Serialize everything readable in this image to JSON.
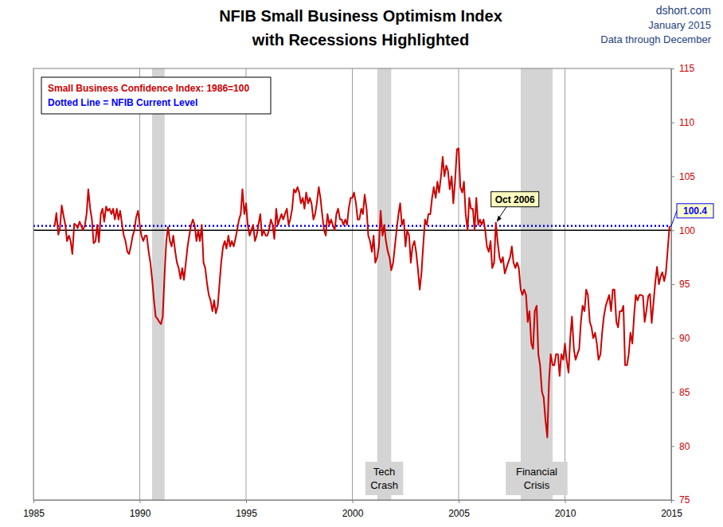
{
  "chart_data": {
    "type": "line",
    "title": "NFIB Small Business Optimism Index",
    "subtitle": "with Recessions Highlighted",
    "source": [
      "dshort.com",
      "January 2015",
      "Data through December"
    ],
    "xlim": [
      1985,
      2015
    ],
    "xticks": [
      1985,
      1990,
      1995,
      2000,
      2005,
      2010,
      2015
    ],
    "ylim": [
      75,
      115
    ],
    "yticks": [
      75,
      80,
      85,
      90,
      95,
      100,
      105,
      110,
      115
    ],
    "grid": true,
    "baseline": 100,
    "series": [
      {
        "name": "Small Business Confidence Index: 1986=100",
        "color": "#cc0000",
        "x": [
          1986,
          1986.08,
          1986.17,
          1986.25,
          1986.33,
          1986.42,
          1986.5,
          1986.58,
          1986.67,
          1986.75,
          1986.83,
          1986.92,
          1987,
          1987.08,
          1987.17,
          1987.25,
          1987.33,
          1987.42,
          1987.5,
          1987.58,
          1987.67,
          1987.75,
          1987.83,
          1987.92,
          1988,
          1988.08,
          1988.17,
          1988.25,
          1988.33,
          1988.42,
          1988.5,
          1988.58,
          1988.67,
          1988.75,
          1988.83,
          1988.92,
          1989,
          1989.08,
          1989.17,
          1989.25,
          1989.33,
          1989.42,
          1989.5,
          1989.58,
          1989.67,
          1989.75,
          1989.83,
          1989.92,
          1990,
          1990.08,
          1990.17,
          1990.25,
          1990.33,
          1990.42,
          1990.5,
          1990.58,
          1990.67,
          1990.75,
          1990.83,
          1990.92,
          1991,
          1991.08,
          1991.17,
          1991.25,
          1991.33,
          1991.42,
          1991.5,
          1991.58,
          1991.67,
          1991.75,
          1991.83,
          1991.92,
          1992,
          1992.08,
          1992.17,
          1992.25,
          1992.33,
          1992.42,
          1992.5,
          1992.58,
          1992.67,
          1992.75,
          1992.83,
          1992.92,
          1993,
          1993.08,
          1993.17,
          1993.25,
          1993.33,
          1993.42,
          1993.5,
          1993.58,
          1993.67,
          1993.75,
          1993.83,
          1993.92,
          1994,
          1994.08,
          1994.17,
          1994.25,
          1994.33,
          1994.42,
          1994.5,
          1994.58,
          1994.67,
          1994.75,
          1994.83,
          1994.92,
          1995,
          1995.08,
          1995.17,
          1995.25,
          1995.33,
          1995.42,
          1995.5,
          1995.58,
          1995.67,
          1995.75,
          1995.83,
          1995.92,
          1996,
          1996.08,
          1996.17,
          1996.25,
          1996.33,
          1996.42,
          1996.5,
          1996.58,
          1996.67,
          1996.75,
          1996.83,
          1996.92,
          1997,
          1997.08,
          1997.17,
          1997.25,
          1997.33,
          1997.42,
          1997.5,
          1997.58,
          1997.67,
          1997.75,
          1997.83,
          1997.92,
          1998,
          1998.08,
          1998.17,
          1998.25,
          1998.33,
          1998.42,
          1998.5,
          1998.58,
          1998.67,
          1998.75,
          1998.83,
          1998.92,
          1999,
          1999.08,
          1999.17,
          1999.25,
          1999.33,
          1999.42,
          1999.5,
          1999.58,
          1999.67,
          1999.75,
          1999.83,
          1999.92,
          2000,
          2000.08,
          2000.17,
          2000.25,
          2000.33,
          2000.42,
          2000.5,
          2000.58,
          2000.67,
          2000.75,
          2000.83,
          2000.92,
          2001,
          2001.08,
          2001.17,
          2001.25,
          2001.33,
          2001.42,
          2001.5,
          2001.58,
          2001.67,
          2001.75,
          2001.83,
          2001.92,
          2002,
          2002.08,
          2002.17,
          2002.25,
          2002.33,
          2002.42,
          2002.5,
          2002.58,
          2002.67,
          2002.75,
          2002.83,
          2002.92,
          2003,
          2003.08,
          2003.17,
          2003.25,
          2003.33,
          2003.42,
          2003.5,
          2003.58,
          2003.67,
          2003.75,
          2003.83,
          2003.92,
          2004,
          2004.08,
          2004.17,
          2004.25,
          2004.33,
          2004.42,
          2004.5,
          2004.58,
          2004.67,
          2004.75,
          2004.83,
          2004.92,
          2005,
          2005.08,
          2005.17,
          2005.25,
          2005.33,
          2005.42,
          2005.5,
          2005.58,
          2005.67,
          2005.75,
          2005.83,
          2005.92,
          2006,
          2006.08,
          2006.17,
          2006.25,
          2006.33,
          2006.42,
          2006.5,
          2006.58,
          2006.67,
          2006.75,
          2006.83,
          2006.92,
          2007,
          2007.08,
          2007.17,
          2007.25,
          2007.33,
          2007.42,
          2007.5,
          2007.58,
          2007.67,
          2007.75,
          2007.83,
          2007.92,
          2008,
          2008.08,
          2008.17,
          2008.25,
          2008.33,
          2008.42,
          2008.5,
          2008.58,
          2008.67,
          2008.75,
          2008.83,
          2008.92,
          2009,
          2009.08,
          2009.17,
          2009.25,
          2009.33,
          2009.42,
          2009.5,
          2009.58,
          2009.67,
          2009.75,
          2009.83,
          2009.92,
          2010,
          2010.08,
          2010.17,
          2010.25,
          2010.33,
          2010.42,
          2010.5,
          2010.58,
          2010.67,
          2010.75,
          2010.83,
          2010.92,
          2011,
          2011.08,
          2011.17,
          2011.25,
          2011.33,
          2011.42,
          2011.5,
          2011.58,
          2011.67,
          2011.75,
          2011.83,
          2011.92,
          2012,
          2012.08,
          2012.17,
          2012.25,
          2012.33,
          2012.42,
          2012.5,
          2012.58,
          2012.67,
          2012.75,
          2012.83,
          2012.92,
          2013,
          2013.08,
          2013.17,
          2013.25,
          2013.33,
          2013.42,
          2013.5,
          2013.58,
          2013.67,
          2013.75,
          2013.83,
          2013.92,
          2014,
          2014.08,
          2014.17,
          2014.25,
          2014.33,
          2014.42,
          2014.5,
          2014.58,
          2014.67,
          2014.75,
          2014.83,
          2014.92
        ],
        "values": [
          100.4,
          101.6,
          99.6,
          100.3,
          102.3,
          101.3,
          100.5,
          99.0,
          99.5,
          99.0,
          97.8,
          100.6,
          100.5,
          100.2,
          100.8,
          100.4,
          100.0,
          100.5,
          101.5,
          103.8,
          102.0,
          101.0,
          98.8,
          99.0,
          100.5,
          98.9,
          101.5,
          102.0,
          100.8,
          102.2,
          101.8,
          102.0,
          101.5,
          102.0,
          101.0,
          102.0,
          101.0,
          101.8,
          100.5,
          99.5,
          99.0,
          98.0,
          97.8,
          98.5,
          99.5,
          100.0,
          101.2,
          101.8,
          100.5,
          99.5,
          99.0,
          99.5,
          99.5,
          98.0,
          97.0,
          95.5,
          93.5,
          92.0,
          91.8,
          91.5,
          91.3,
          92.0,
          96.0,
          99.0,
          100.3,
          99.0,
          98.5,
          99.5,
          98.0,
          97.0,
          96.5,
          95.5,
          96.5,
          95.4,
          97.0,
          98.5,
          99.5,
          100.5,
          101.0,
          100.5,
          99.0,
          100.0,
          99.0,
          100.5,
          97.0,
          96.5,
          95.0,
          94.0,
          93.5,
          92.5,
          93.5,
          92.3,
          93.0,
          95.0,
          97.0,
          98.5,
          99.0,
          98.3,
          99.5,
          98.5,
          99.0,
          98.5,
          99.2,
          100.0,
          101.0,
          101.5,
          103.8,
          101.5,
          102.5,
          100.5,
          99.5,
          100.0,
          100.5,
          99.0,
          99.5,
          100.5,
          101.5,
          99.5,
          100.0,
          99.5,
          99.5,
          100.0,
          101.0,
          100.5,
          99.2,
          102.0,
          100.5,
          101.0,
          101.5,
          101.0,
          101.5,
          102.0,
          100.5,
          101.0,
          102.0,
          103.8,
          103.5,
          104.0,
          103.5,
          102.5,
          103.0,
          102.0,
          103.5,
          102.5,
          103.0,
          102.5,
          101.0,
          101.5,
          102.5,
          104.0,
          103.0,
          101.5,
          100.0,
          99.5,
          101.5,
          100.5,
          101.0,
          100.5,
          100.0,
          101.5,
          102.0,
          101.0,
          101.0,
          100.5,
          101.0,
          100.5,
          102.0,
          103.0,
          103.0,
          103.5,
          102.5,
          101.0,
          101.0,
          102.0,
          101.5,
          103.3,
          102.0,
          99.5,
          99.0,
          98.0,
          99.5,
          97.0,
          97.5,
          98.5,
          101.8,
          99.5,
          100.5,
          99.0,
          98.0,
          97.5,
          96.3,
          97.0,
          98.5,
          100.0,
          101.5,
          102.5,
          100.5,
          101.0,
          98.5,
          100.0,
          99.5,
          97.0,
          98.5,
          99.0,
          98.0,
          96.5,
          94.5,
          96.0,
          98.5,
          101.0,
          100.5,
          101.5,
          101.5,
          103.0,
          104.0,
          103.0,
          104.5,
          103.5,
          105.0,
          106.8,
          105.0,
          106.0,
          105.5,
          103.8,
          105.0,
          102.5,
          104.5,
          107.5,
          107.6,
          104.0,
          103.5,
          104.5,
          101.5,
          100.0,
          103.0,
          102.0,
          102.0,
          100.0,
          103.0,
          100.5,
          101.0,
          100.5,
          101.0,
          100.0,
          98.5,
          98.0,
          99.0,
          96.5,
          97.0,
          100.7,
          99.0,
          97.5,
          97.0,
          97.5,
          96.0,
          96.5,
          97.0,
          97.5,
          98.5,
          97.0,
          96.5,
          97.0,
          96.5,
          94.5,
          94.0,
          94.5,
          94.0,
          91.5,
          92.5,
          89.5,
          89.0,
          92.5,
          93.0,
          88.5,
          87.5,
          85.0,
          84.5,
          82.5,
          80.8,
          86.0,
          88.5,
          87.5,
          87.5,
          88.5,
          88.5,
          86.5,
          88.5,
          88.0,
          89.5,
          88.0,
          86.8,
          90.0,
          92.0,
          89.0,
          88.0,
          88.5,
          89.0,
          91.5,
          93.0,
          92.5,
          94.5,
          94.0,
          91.5,
          91.0,
          90.0,
          90.5,
          89.5,
          88.0,
          88.5,
          90.5,
          92.0,
          93.0,
          93.5,
          94.0,
          92.5,
          94.5,
          94.5,
          91.5,
          91.0,
          92.5,
          92.5,
          93.0,
          87.5,
          87.5,
          88.5,
          90.5,
          89.5,
          92.0,
          94.0,
          93.5,
          94.0,
          94.0,
          93.9,
          91.5,
          92.5,
          93.9,
          94.1,
          91.4,
          93.4,
          95.2,
          96.6,
          95.0,
          95.7,
          96.1,
          95.3,
          96.1,
          98.1,
          100.4
        ]
      }
    ],
    "reference_line": {
      "value": 100.4,
      "label": "Dotted Line = NFIB Current Level",
      "color": "#0000ff",
      "line_style": "dotted"
    },
    "recessions": [
      {
        "start": 1990.58,
        "end": 1991.17
      },
      {
        "start": 2001.17,
        "end": 2001.83,
        "label": "Tech Crash"
      },
      {
        "start": 2007.92,
        "end": 2009.42,
        "label": "Financial Crisis"
      }
    ],
    "annotations": [
      {
        "text": "Oct 2006",
        "x": 2006.75,
        "y": 100.7
      }
    ]
  }
}
